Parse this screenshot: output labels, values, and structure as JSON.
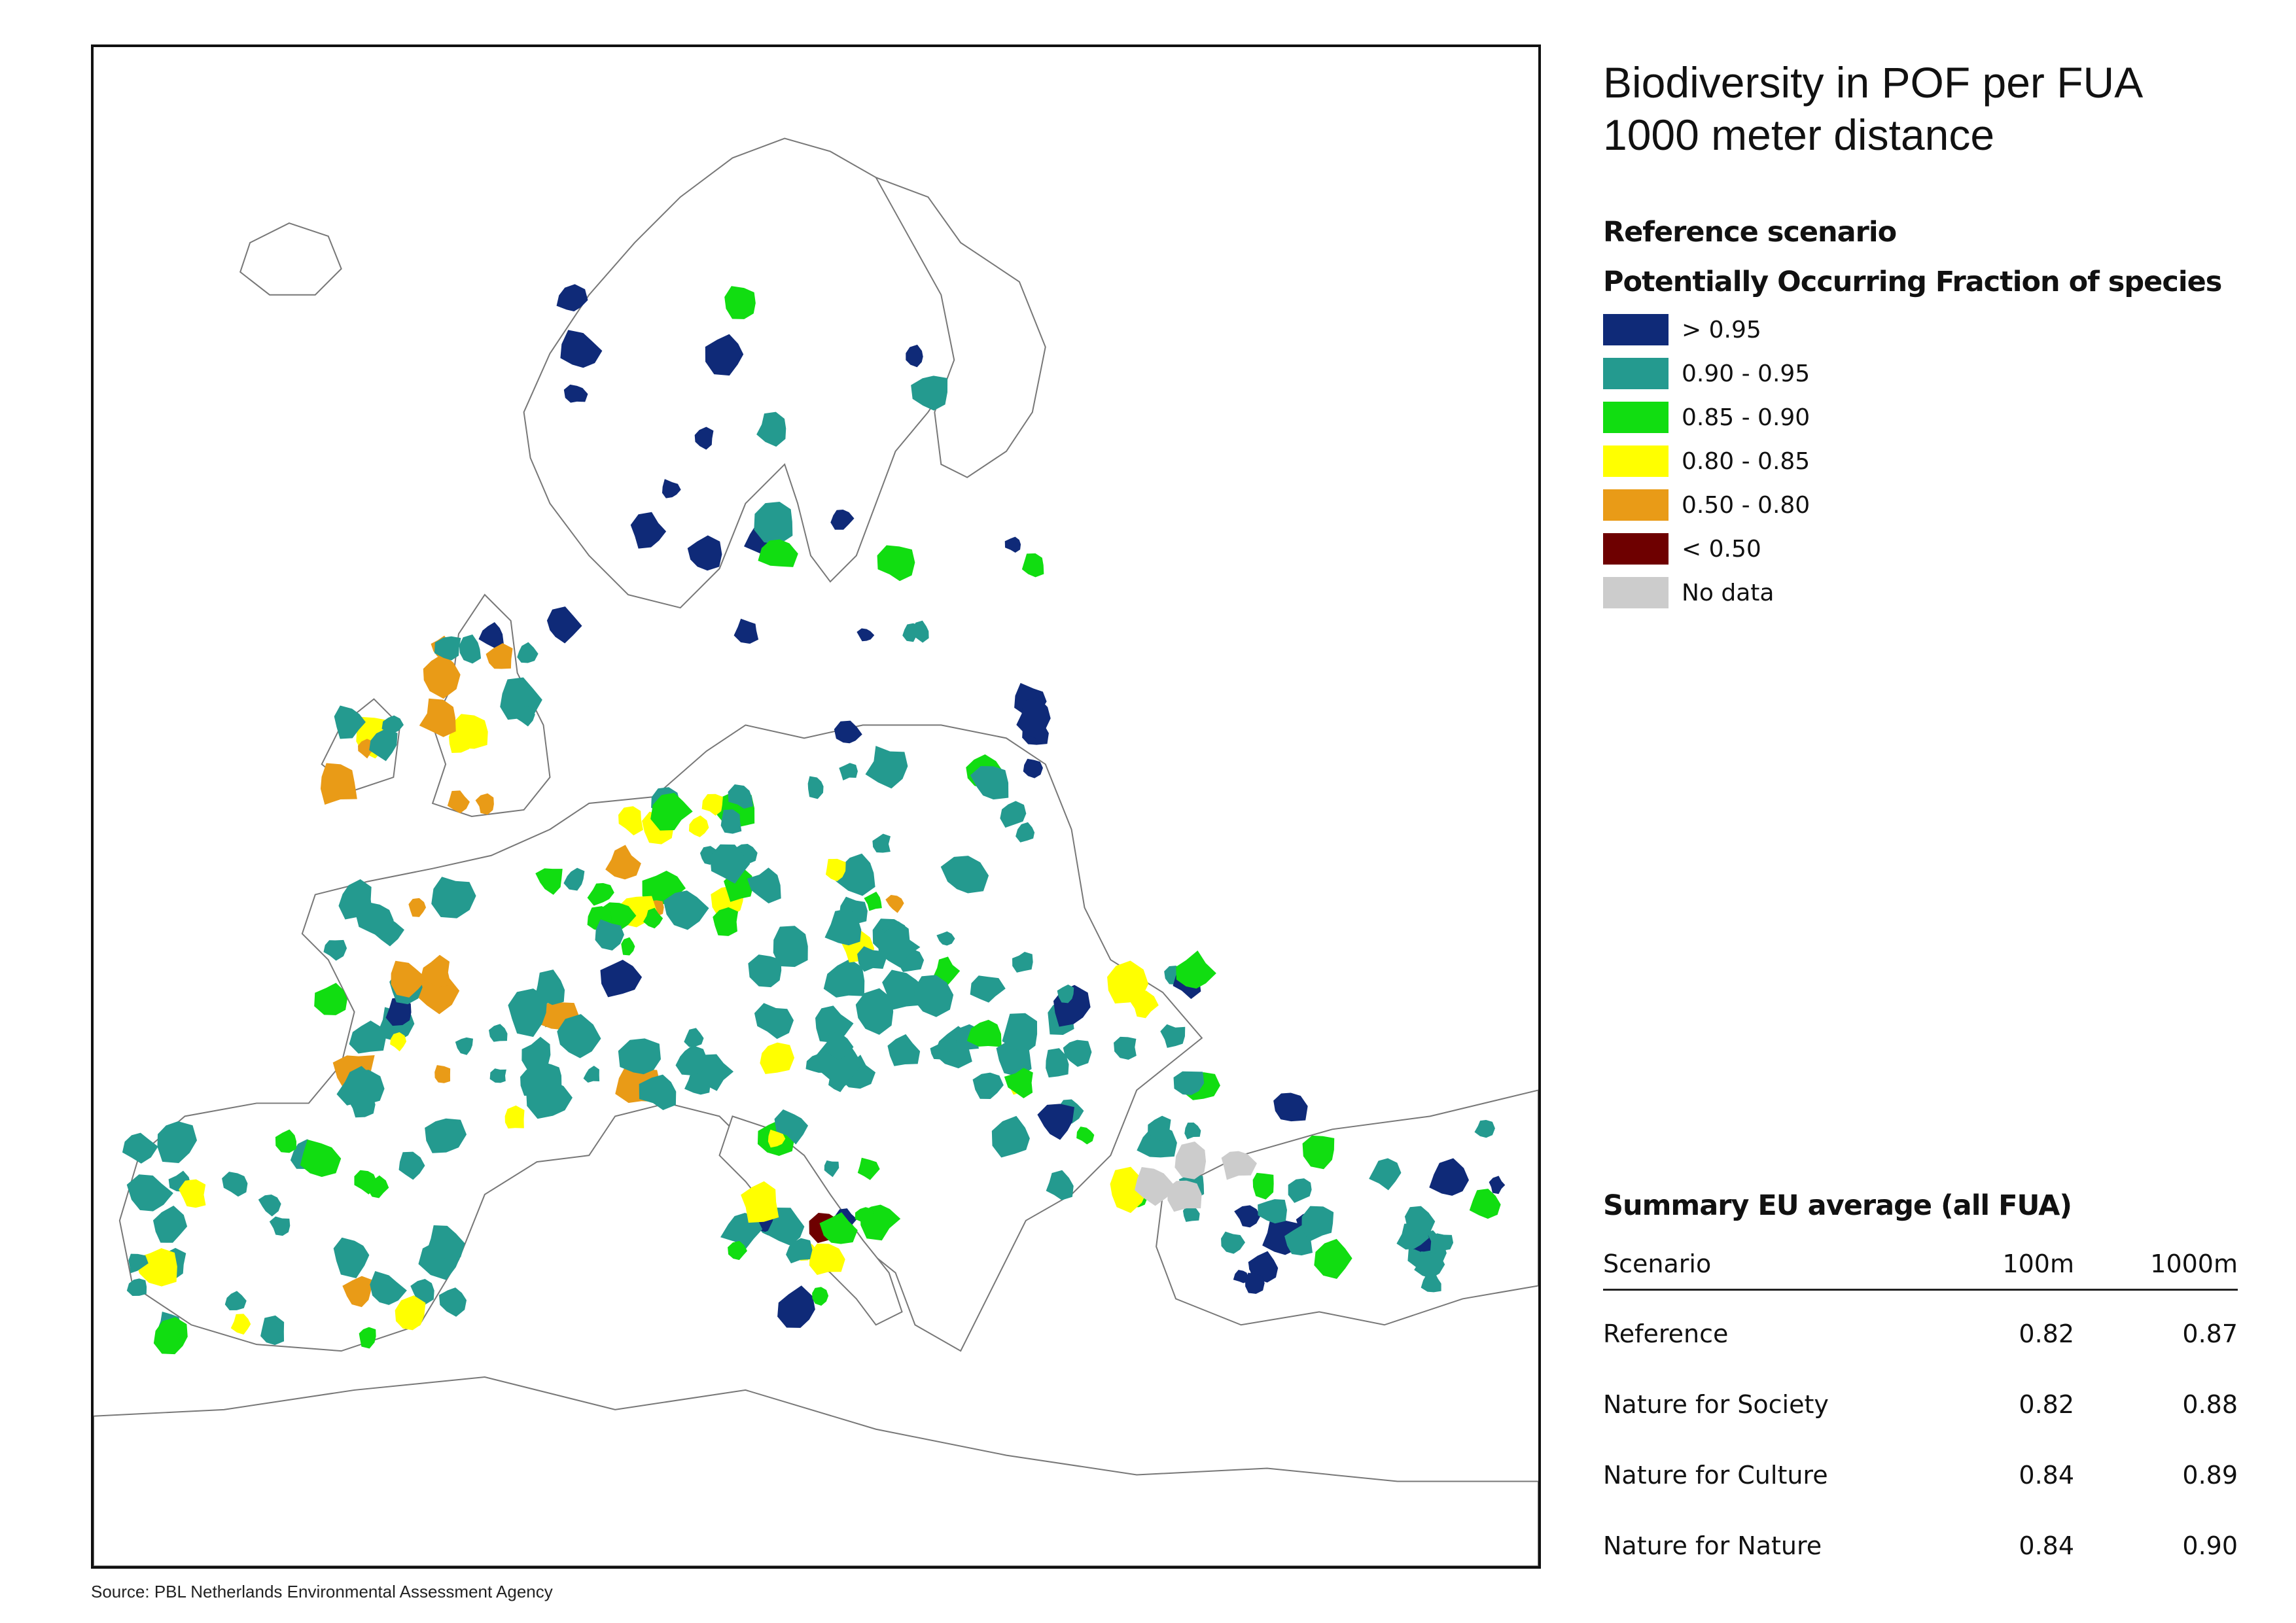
{
  "title": {
    "line1": "Biodiversity in POF per FUA",
    "line2": "1000 meter distance"
  },
  "scenario_heading": "Reference scenario",
  "legend": {
    "heading": "Potentially Occurring Fraction of species",
    "items": [
      {
        "label": "> 0.95",
        "color": "#0f2a78"
      },
      {
        "label": "0.90 - 0.95",
        "color": "#249a8f"
      },
      {
        "label": "0.85 - 0.90",
        "color": "#11dd11"
      },
      {
        "label": "0.80 - 0.85",
        "color": "#ffff00"
      },
      {
        "label": "0.50 - 0.80",
        "color": "#e99b17"
      },
      {
        "label": "< 0.50",
        "color": "#6e0000"
      },
      {
        "label": "No data",
        "color": "#cccccc"
      }
    ]
  },
  "summary": {
    "heading": "Summary EU average (all FUA)",
    "columns": [
      "Scenario",
      "100m",
      "1000m"
    ],
    "rows": [
      {
        "scenario": "Reference",
        "v100m": "0.82",
        "v1000m": "0.87"
      },
      {
        "scenario": "Nature for Society",
        "v100m": "0.82",
        "v1000m": "0.88"
      },
      {
        "scenario": "Nature for Culture",
        "v100m": "0.84",
        "v1000m": "0.89"
      },
      {
        "scenario": "Nature for Nature",
        "v100m": "0.84",
        "v1000m": "0.90"
      }
    ]
  },
  "source": "Source: PBL Netherlands Environmental Assessment Agency"
}
